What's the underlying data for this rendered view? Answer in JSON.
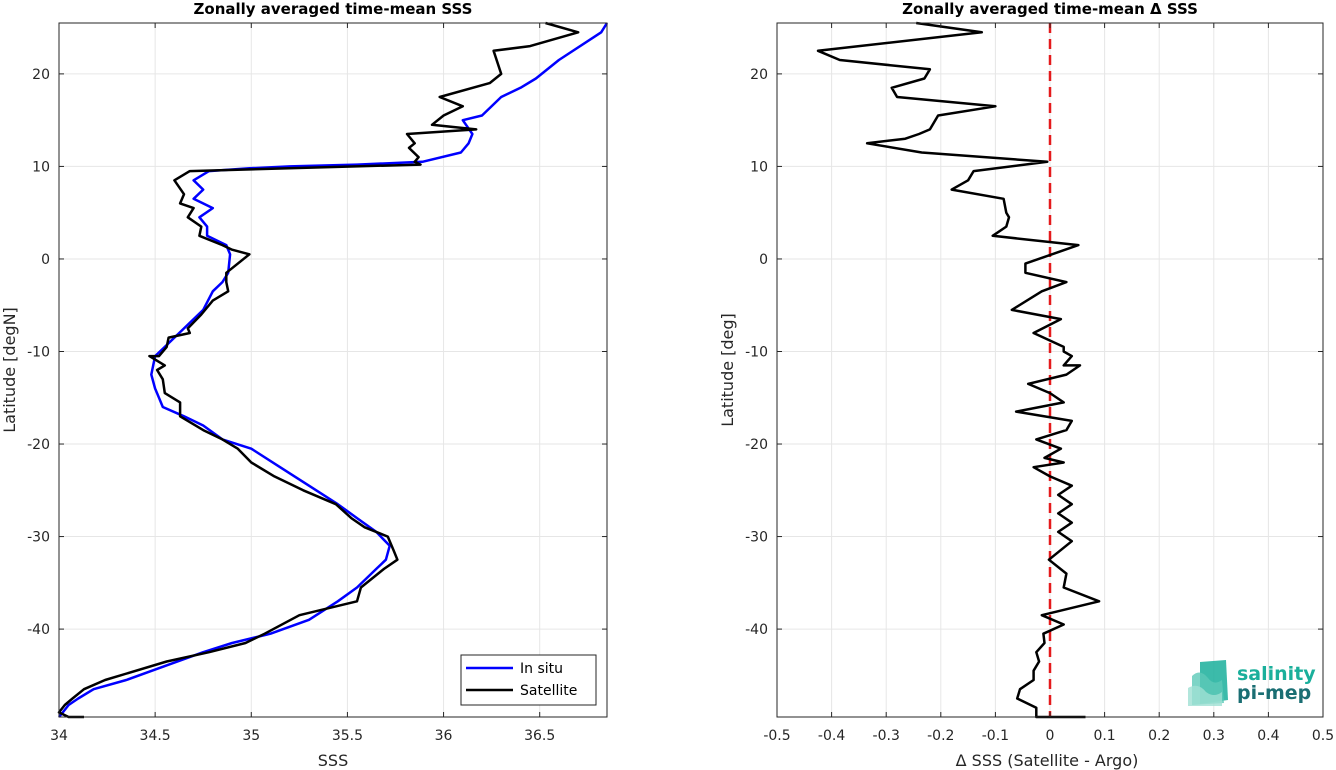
{
  "chart_data": [
    {
      "type": "line",
      "title": "Zonally averaged time-mean SSS",
      "xlabel": "SSS",
      "ylabel": "Latitude [degN]",
      "xlim": [
        34.0,
        36.85
      ],
      "ylim": [
        -49.5,
        25.5
      ],
      "xticks": [
        "34",
        "34.5",
        "35",
        "35.5",
        "36",
        "36.5"
      ],
      "yticks": [
        "-40",
        "-30",
        "-20",
        "-10",
        "0",
        "10",
        "20"
      ],
      "grid": true,
      "legend_position": "bottom-right",
      "series": [
        {
          "name": "In situ",
          "color": "#0000ff",
          "x": [
            36.85,
            36.82,
            36.6,
            36.48,
            36.4,
            36.3,
            36.2,
            36.1,
            36.15,
            36.13,
            36.09,
            35.89,
            35.55,
            35.2,
            34.99,
            34.78,
            34.7,
            34.75,
            34.7,
            34.8,
            34.73,
            34.77,
            34.77,
            34.87,
            34.89,
            34.88,
            34.85,
            34.8,
            34.75,
            34.65,
            34.55,
            34.5,
            34.48,
            34.5,
            34.52,
            34.54,
            34.65,
            34.75,
            34.85,
            35.0,
            35.15,
            35.3,
            35.45,
            35.55,
            35.65,
            35.72,
            35.7,
            35.65,
            35.55,
            35.45,
            35.3,
            35.1,
            34.9,
            34.75,
            34.55,
            34.35,
            34.18,
            34.1,
            34.05,
            34.02,
            34.0
          ],
          "y": [
            25.5,
            24.5,
            21.5,
            19.5,
            18.5,
            17.5,
            15.5,
            15.0,
            13.5,
            12.5,
            11.5,
            10.5,
            10.2,
            10.0,
            9.8,
            9.5,
            8.5,
            7.5,
            6.5,
            5.5,
            4.5,
            3.5,
            2.5,
            1.5,
            0.5,
            -1.5,
            -2.5,
            -3.5,
            -5.5,
            -7.5,
            -9.5,
            -10.5,
            -12.5,
            -14.0,
            -15.0,
            -16.0,
            -17.0,
            -18.0,
            -19.5,
            -20.5,
            -22.5,
            -24.5,
            -26.5,
            -28.0,
            -29.5,
            -31.0,
            -32.5,
            -33.5,
            -35.5,
            -37.0,
            -39.0,
            -40.5,
            -41.5,
            -42.5,
            -44.0,
            -45.5,
            -46.5,
            -47.5,
            -48.2,
            -49.0,
            -49.5
          ]
        },
        {
          "name": "Satellite",
          "color": "#000000",
          "x": [
            36.53,
            36.7,
            36.45,
            36.26,
            36.3,
            36.24,
            35.98,
            36.1,
            36.0,
            35.94,
            36.17,
            35.81,
            35.85,
            35.82,
            35.87,
            35.85,
            35.88,
            34.68,
            34.6,
            34.65,
            34.63,
            34.7,
            34.67,
            34.74,
            34.73,
            34.85,
            34.9,
            34.99,
            34.87,
            34.87,
            34.88,
            34.8,
            34.74,
            34.67,
            34.68,
            34.57,
            34.56,
            34.52,
            34.47,
            34.55,
            34.51,
            34.54,
            34.55,
            34.63,
            34.63,
            34.75,
            34.85,
            34.93,
            35.0,
            35.12,
            35.27,
            35.44,
            35.52,
            35.59,
            35.71,
            35.74,
            35.76,
            35.69,
            35.57,
            35.55,
            35.25,
            35.07,
            34.97,
            34.78,
            34.56,
            34.24,
            34.13,
            34.07,
            34.03,
            34.0,
            34.05,
            34.13
          ],
          "y": [
            25.5,
            24.5,
            23.0,
            22.5,
            20.0,
            19.0,
            17.5,
            16.5,
            15.5,
            14.5,
            14.0,
            13.5,
            12.5,
            12.0,
            11.0,
            10.5,
            10.2,
            9.5,
            8.5,
            7.0,
            6.0,
            5.5,
            4.5,
            3.5,
            2.5,
            1.5,
            1.0,
            0.5,
            -1.5,
            -2.5,
            -3.5,
            -4.5,
            -6.0,
            -7.5,
            -8.0,
            -8.5,
            -9.5,
            -10.5,
            -10.5,
            -11.5,
            -12.0,
            -13.0,
            -14.5,
            -15.5,
            -17.0,
            -18.5,
            -19.5,
            -20.5,
            -22.0,
            -23.5,
            -25.0,
            -26.5,
            -28.0,
            -29.0,
            -30.0,
            -31.5,
            -32.5,
            -33.5,
            -35.5,
            -37.0,
            -38.5,
            -40.5,
            -41.5,
            -42.5,
            -43.5,
            -45.5,
            -46.5,
            -47.5,
            -48.2,
            -49.0,
            -49.5,
            -49.5
          ]
        }
      ]
    },
    {
      "type": "line",
      "title": "Zonally averaged time-mean Δ SSS",
      "xlabel": "Δ SSS (Satellite - Argo)",
      "ylabel": "Latitude [deg]",
      "xlim": [
        -0.5,
        0.5
      ],
      "ylim": [
        -49.5,
        25.5
      ],
      "xticks": [
        "-0.5",
        "-0.4",
        "-0.3",
        "-0.2",
        "-0.1",
        "0",
        "0.1",
        "0.2",
        "0.3",
        "0.4",
        "0.5"
      ],
      "yticks": [
        "-40",
        "-30",
        "-20",
        "-10",
        "0",
        "10",
        "20"
      ],
      "grid": true,
      "zero_line_color": "#e41a1c",
      "series": [
        {
          "color": "#000000",
          "x": [
            -0.245,
            -0.125,
            -0.425,
            -0.385,
            -0.22,
            -0.23,
            -0.29,
            -0.28,
            -0.1,
            -0.205,
            -0.22,
            -0.24,
            -0.265,
            -0.335,
            -0.235,
            -0.005,
            -0.14,
            -0.15,
            -0.18,
            -0.085,
            -0.08,
            -0.075,
            -0.08,
            -0.105,
            0.052,
            -0.045,
            -0.045,
            0.03,
            -0.015,
            -0.07,
            0.02,
            -0.03,
            0.025,
            0.025,
            0.04,
            0.025,
            0.055,
            0.03,
            -0.04,
            0.0,
            0.025,
            -0.062,
            0.04,
            0.035,
            0.03,
            -0.025,
            0.02,
            -0.01,
            0.025,
            -0.03,
            0.0,
            0.04,
            0.015,
            0.04,
            0.015,
            0.04,
            0.015,
            0.04,
            -0.002,
            0.03,
            0.025,
            0.09,
            -0.015,
            0.025,
            -0.012,
            -0.01,
            -0.025,
            -0.02,
            -0.03,
            -0.03,
            -0.055,
            -0.06,
            -0.025,
            -0.025,
            0.065
          ],
          "y": [
            25.5,
            24.5,
            22.5,
            21.5,
            20.5,
            19.5,
            18.5,
            17.5,
            16.5,
            15.5,
            14.0,
            13.5,
            13.0,
            12.5,
            11.5,
            10.5,
            9.5,
            8.5,
            7.5,
            6.5,
            5.0,
            4.5,
            3.5,
            2.5,
            1.5,
            -0.5,
            -1.5,
            -2.5,
            -3.5,
            -5.5,
            -6.5,
            -8.0,
            -9.5,
            -10.0,
            -10.5,
            -11.5,
            -11.5,
            -12.5,
            -13.5,
            -14.5,
            -15.5,
            -16.5,
            -17.5,
            -18.0,
            -18.5,
            -19.5,
            -20.5,
            -21.5,
            -22.0,
            -22.5,
            -23.5,
            -24.5,
            -25.5,
            -26.5,
            -27.5,
            -28.5,
            -29.5,
            -30.5,
            -32.5,
            -34.0,
            -35.5,
            -37.0,
            -38.5,
            -39.5,
            -40.5,
            -41.5,
            -42.5,
            -43.5,
            -44.5,
            -45.5,
            -46.5,
            -47.5,
            -48.5,
            -49.5,
            -49.5
          ]
        }
      ]
    }
  ],
  "legend": {
    "items": [
      {
        "label": "In situ",
        "color": "#0000ff"
      },
      {
        "label": "Satellite",
        "color": "#000000"
      }
    ]
  },
  "logo": {
    "line1": "salinity",
    "line2": "pi-mep",
    "color1": "#1aaf9b",
    "color2": "#1a6e73"
  }
}
